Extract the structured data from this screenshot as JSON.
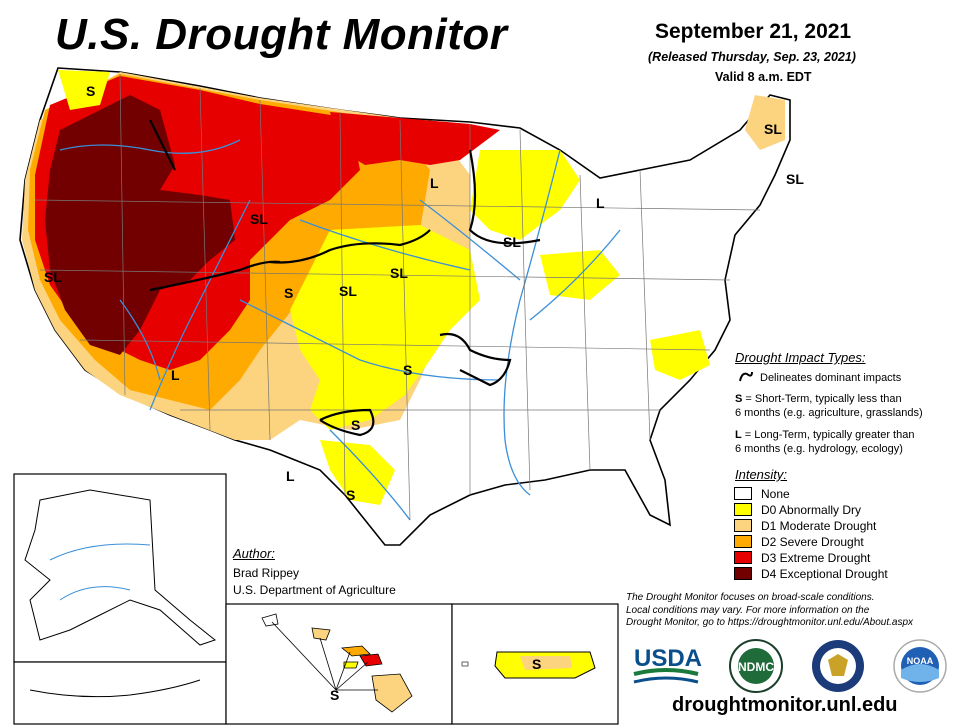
{
  "header": {
    "title": "U.S. Drought Monitor",
    "date": "September 21, 2021",
    "released": "(Released Thursday, Sep. 23, 2021)",
    "valid": "Valid 8 a.m. EDT"
  },
  "impact_legend": {
    "title": "Drought Impact Types:",
    "delineates": "Delineates dominant impacts",
    "short_term_key": "S",
    "short_term_text": " = Short-Term, typically less than",
    "short_term_text2": "6 months (e.g. agriculture, grasslands)",
    "long_term_key": "L",
    "long_term_text": " = Long-Term, typically greater than",
    "long_term_text2": "6 months (e.g. hydrology, ecology)"
  },
  "intensity_legend": {
    "title": "Intensity:",
    "items": [
      {
        "label": "None",
        "color": "#ffffff"
      },
      {
        "label": "D0 Abnormally Dry",
        "color": "#ffff00"
      },
      {
        "label": "D1 Moderate Drought",
        "color": "#fcd37f"
      },
      {
        "label": "D2 Severe Drought",
        "color": "#ffaa00"
      },
      {
        "label": "D3 Extreme Drought",
        "color": "#e60000"
      },
      {
        "label": "D4 Exceptional Drought",
        "color": "#730000"
      }
    ]
  },
  "map_labels": {
    "s": "S",
    "sl": "SL",
    "l": "L"
  },
  "author": {
    "title": "Author:",
    "name": "Brad Rippey",
    "org": "U.S. Department of Agriculture"
  },
  "disclaimer": {
    "line1": "The Drought Monitor focuses on broad-scale conditions.",
    "line2": "Local conditions may vary. For more information on the",
    "line3": "Drought Monitor, go to https://droughtmonitor.unl.edu/About.aspx"
  },
  "logos": {
    "usda": "USDA",
    "ndmc": "NDMC",
    "noaa": "NOAA"
  },
  "website": "droughtmonitor.unl.edu",
  "colors": {
    "none": "#ffffff",
    "d0": "#ffff00",
    "d1": "#fcd37f",
    "d2": "#ffaa00",
    "d3": "#e60000",
    "d4": "#730000",
    "water": "#3a8fd9"
  }
}
